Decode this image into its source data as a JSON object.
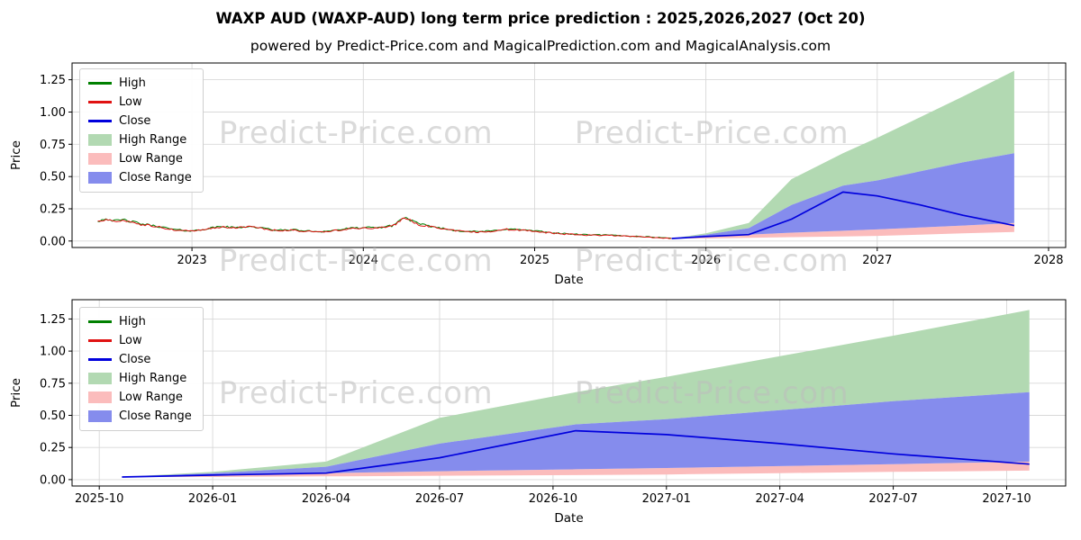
{
  "page": {
    "title": "WAXP AUD (WAXP-AUD) long term price prediction : 2025,2026,2027 (Oct 20)",
    "subtitle": "powered by Predict-Price.com and MagicalPrediction.com and MagicalAnalysis.com",
    "watermark": "Predict-Price.com"
  },
  "colors": {
    "high": "#008000",
    "low": "#e01212",
    "close": "#0000dd",
    "high_range": "#b2d9b2",
    "low_range": "#fbbcbc",
    "close_range": "#858ced"
  },
  "legend": [
    {
      "label": "High",
      "type": "line",
      "color": "high"
    },
    {
      "label": "Low",
      "type": "line",
      "color": "low"
    },
    {
      "label": "Close",
      "type": "line",
      "color": "close"
    },
    {
      "label": "High Range",
      "type": "patch",
      "color": "high_range"
    },
    {
      "label": "Low Range",
      "type": "patch",
      "color": "low_range"
    },
    {
      "label": "Close Range",
      "type": "patch",
      "color": "close_range"
    }
  ],
  "chart_data": [
    {
      "type": "line",
      "role": "history-plus-prediction",
      "xlabel": "Date",
      "ylabel": "Price",
      "grid": true,
      "legend_position": "upper left",
      "xlim": [
        2022.3,
        2028.1
      ],
      "ylim": [
        -0.05,
        1.38
      ],
      "xticks": {
        "values": [
          2023,
          2024,
          2025,
          2026,
          2027,
          2028
        ],
        "labels": [
          "2023",
          "2024",
          "2025",
          "2026",
          "2027",
          "2028"
        ]
      },
      "yticks": {
        "values": [
          0,
          0.25,
          0.5,
          0.75,
          1.0,
          1.25
        ],
        "labels": [
          "0.00",
          "0.25",
          "0.50",
          "0.75",
          "1.00",
          "1.25"
        ]
      },
      "series": {
        "historical": {
          "note": "approximate keypoints of the noisy daily High/Low/Close history (values in AUD, x in decimal years)",
          "x": [
            2022.45,
            2022.5,
            2022.55,
            2022.6,
            2022.7,
            2022.8,
            2022.9,
            2023.0,
            2023.08,
            2023.17,
            2023.25,
            2023.33,
            2023.42,
            2023.5,
            2023.58,
            2023.67,
            2023.75,
            2023.83,
            2023.92,
            2024.0,
            2024.08,
            2024.17,
            2024.24,
            2024.28,
            2024.33,
            2024.42,
            2024.5,
            2024.58,
            2024.67,
            2024.75,
            2024.83,
            2024.92,
            2025.0,
            2025.08,
            2025.17,
            2025.25,
            2025.33,
            2025.42,
            2025.5,
            2025.58,
            2025.67,
            2025.75,
            2025.8
          ],
          "close": [
            0.15,
            0.17,
            0.15,
            0.16,
            0.13,
            0.11,
            0.085,
            0.075,
            0.09,
            0.11,
            0.1,
            0.11,
            0.095,
            0.08,
            0.085,
            0.075,
            0.07,
            0.08,
            0.095,
            0.1,
            0.1,
            0.115,
            0.18,
            0.155,
            0.125,
            0.105,
            0.085,
            0.075,
            0.07,
            0.075,
            0.09,
            0.085,
            0.075,
            0.065,
            0.055,
            0.05,
            0.045,
            0.045,
            0.04,
            0.035,
            0.03,
            0.025,
            0.02
          ]
        },
        "prediction": {
          "x_months": [
            "2025-10",
            "2026-01",
            "2026-04",
            "2026-07",
            "2026-11",
            "2027-01",
            "2027-04",
            "2027-07",
            "2027-10"
          ],
          "x": [
            2025.8,
            2026.0,
            2026.25,
            2026.5,
            2026.8,
            2027.0,
            2027.25,
            2027.5,
            2027.8
          ],
          "close": [
            0.02,
            0.035,
            0.05,
            0.17,
            0.38,
            0.35,
            0.28,
            0.2,
            0.12
          ],
          "close_range_upper": [
            0.02,
            0.05,
            0.1,
            0.28,
            0.43,
            0.47,
            0.54,
            0.61,
            0.68
          ],
          "close_range_lower": [
            0.02,
            0.035,
            0.05,
            0.065,
            0.08,
            0.09,
            0.105,
            0.12,
            0.14
          ],
          "high_range_upper": [
            0.02,
            0.06,
            0.14,
            0.48,
            0.68,
            0.8,
            0.96,
            1.12,
            1.32
          ],
          "low_range_upper": [
            0.02,
            0.035,
            0.05,
            0.065,
            0.08,
            0.09,
            0.105,
            0.12,
            0.14
          ],
          "low_range_lower": [
            0.02,
            0.02,
            0.025,
            0.03,
            0.035,
            0.04,
            0.05,
            0.06,
            0.07
          ]
        }
      }
    },
    {
      "type": "line",
      "role": "prediction-zoom",
      "xlabel": "Date",
      "ylabel": "Price",
      "grid": true,
      "legend_position": "upper left",
      "xlim": [
        2025.69,
        2027.88
      ],
      "ylim": [
        -0.05,
        1.4
      ],
      "xticks": {
        "values": [
          2025.75,
          2026.0,
          2026.25,
          2026.5,
          2026.75,
          2027.0,
          2027.25,
          2027.5,
          2027.75
        ],
        "labels": [
          "2025-10",
          "2026-01",
          "2026-04",
          "2026-07",
          "2026-10",
          "2027-01",
          "2027-04",
          "2027-07",
          "2027-10"
        ]
      },
      "yticks": {
        "values": [
          0,
          0.25,
          0.5,
          0.75,
          1.0,
          1.25
        ],
        "labels": [
          "0.00",
          "0.25",
          "0.50",
          "0.75",
          "1.00",
          "1.25"
        ]
      },
      "series": {
        "prediction": {
          "x_months": [
            "2025-10",
            "2026-01",
            "2026-04",
            "2026-07",
            "2026-11",
            "2027-01",
            "2027-04",
            "2027-07",
            "2027-10"
          ],
          "x": [
            2025.8,
            2026.0,
            2026.25,
            2026.5,
            2026.8,
            2027.0,
            2027.25,
            2027.5,
            2027.8
          ],
          "close": [
            0.02,
            0.035,
            0.05,
            0.17,
            0.38,
            0.35,
            0.28,
            0.2,
            0.12
          ],
          "close_range_upper": [
            0.02,
            0.05,
            0.1,
            0.28,
            0.43,
            0.47,
            0.54,
            0.61,
            0.68
          ],
          "close_range_lower": [
            0.02,
            0.035,
            0.05,
            0.065,
            0.08,
            0.09,
            0.105,
            0.12,
            0.14
          ],
          "high_range_upper": [
            0.02,
            0.06,
            0.14,
            0.48,
            0.68,
            0.8,
            0.96,
            1.12,
            1.32
          ],
          "low_range_upper": [
            0.02,
            0.035,
            0.05,
            0.065,
            0.08,
            0.09,
            0.105,
            0.12,
            0.14
          ],
          "low_range_lower": [
            0.02,
            0.02,
            0.025,
            0.03,
            0.035,
            0.04,
            0.05,
            0.06,
            0.07
          ]
        }
      }
    }
  ]
}
